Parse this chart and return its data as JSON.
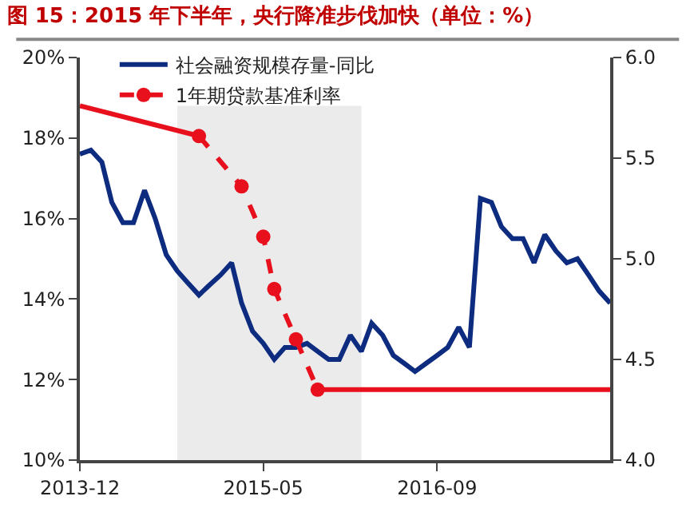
{
  "chart_data": {
    "type": "line",
    "title": "图 15：2015 年下半年，央行降准步伐加快（单位：%）",
    "xlim": [
      "2013-12",
      "2018-01"
    ],
    "xticks": [
      "2013-12",
      "2015-05",
      "2016-09"
    ],
    "ylim": [
      10,
      20
    ],
    "yticks": [
      {
        "value": 10,
        "label": "10%"
      },
      {
        "value": 12,
        "label": "12%"
      },
      {
        "value": 14,
        "label": "14%"
      },
      {
        "value": 16,
        "label": "16%"
      },
      {
        "value": 18,
        "label": "18%"
      },
      {
        "value": 20,
        "label": "20%"
      }
    ],
    "y2lim": [
      4.0,
      6.0
    ],
    "y2ticks": [
      {
        "value": 4.0,
        "label": "4.0"
      },
      {
        "value": 4.5,
        "label": "4.5"
      },
      {
        "value": 5.0,
        "label": "5.0"
      },
      {
        "value": 5.5,
        "label": "5.5"
      },
      {
        "value": 6.0,
        "label": "6.0"
      }
    ],
    "grid": false,
    "legend": "top left",
    "bands": [
      {
        "axis": "x",
        "from": "2014-09",
        "to": "2016-02",
        "color": "#ebebeb"
      }
    ],
    "series": [
      {
        "name": "社会融资规模存量-同比",
        "color": "#0d2c7f",
        "line_style": "solid",
        "marker": "none",
        "x": [
          "2013-12",
          "2014-01",
          "2014-02",
          "2014-03",
          "2014-04",
          "2014-05",
          "2014-06",
          "2014-07",
          "2014-08",
          "2014-09",
          "2014-10",
          "2014-11",
          "2014-12",
          "2015-01",
          "2015-02",
          "2015-03",
          "2015-04",
          "2015-05",
          "2015-06",
          "2015-07",
          "2015-08",
          "2015-09",
          "2015-10",
          "2015-11",
          "2015-12",
          "2016-01",
          "2016-02",
          "2016-03",
          "2016-04",
          "2016-05",
          "2016-06",
          "2016-07",
          "2016-08",
          "2016-09",
          "2016-10",
          "2016-11",
          "2016-12",
          "2017-01",
          "2017-02",
          "2017-03",
          "2017-04",
          "2017-05",
          "2017-06",
          "2017-07",
          "2017-08",
          "2017-09",
          "2017-10",
          "2017-11",
          "2017-12",
          "2018-01"
        ],
        "values": [
          17.6,
          17.7,
          17.4,
          16.4,
          15.9,
          15.9,
          16.7,
          16.0,
          15.1,
          14.7,
          14.4,
          14.1,
          14.35,
          14.6,
          14.9,
          13.9,
          13.2,
          12.9,
          12.5,
          12.8,
          12.8,
          12.9,
          12.7,
          12.5,
          12.5,
          13.1,
          12.7,
          13.4,
          13.1,
          12.6,
          12.4,
          12.2,
          12.4,
          12.6,
          12.8,
          13.3,
          12.8,
          16.5,
          16.4,
          15.8,
          15.5,
          15.5,
          14.9,
          15.6,
          15.2,
          14.9,
          15.0,
          14.6,
          14.2,
          13.9
        ]
      },
      {
        "color": "#e8101d",
        "axis": "y2",
        "line_style": "solid",
        "x": [
          "2013-12",
          "2014-11"
        ],
        "values": [
          5.76,
          5.61
        ]
      },
      {
        "name": "1年期贷款基准利率",
        "color": "#e8101d",
        "axis": "y2",
        "line_style": "dashed",
        "marker": "circle",
        "x": [
          "2014-11",
          "2015-03",
          "2015-05",
          "2015-06",
          "2015-08",
          "2015-10"
        ],
        "values": [
          5.61,
          5.36,
          5.11,
          4.85,
          4.6,
          4.35
        ]
      },
      {
        "color": "#e8101d",
        "axis": "y2",
        "line_style": "solid",
        "x": [
          "2015-10",
          "2018-01"
        ],
        "values": [
          4.35,
          4.35
        ]
      }
    ]
  }
}
